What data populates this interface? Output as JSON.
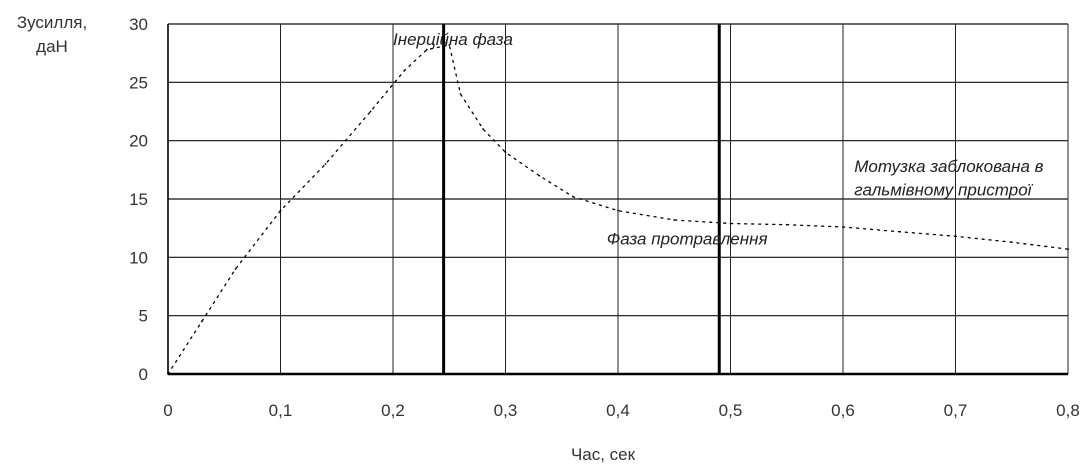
{
  "chart_data": {
    "type": "line",
    "title": "",
    "xlabel": "Час, сек",
    "ylabel_lines": [
      "Зусилля,",
      "даН"
    ],
    "xlim": [
      0,
      0.8
    ],
    "ylim": [
      0,
      30
    ],
    "x_ticks": [
      0,
      0.1,
      0.2,
      0.3,
      0.4,
      0.5,
      0.6,
      0.7,
      0.8
    ],
    "x_tick_labels": [
      "0",
      "0,1",
      "0,2",
      "0,3",
      "0,4",
      "0,5",
      "0,6",
      "0,7",
      "0,8"
    ],
    "y_ticks": [
      0,
      5,
      10,
      15,
      20,
      25,
      30
    ],
    "y_tick_labels": [
      "0",
      "5",
      "10",
      "15",
      "20",
      "25",
      "30"
    ],
    "grid": true,
    "legend": "none",
    "series": [
      {
        "style": "dotted",
        "x": [
          0.0,
          0.03,
          0.06,
          0.1,
          0.14,
          0.18,
          0.21,
          0.23,
          0.25,
          0.26,
          0.28,
          0.3,
          0.33,
          0.36,
          0.4,
          0.45,
          0.5,
          0.55,
          0.6,
          0.65,
          0.7,
          0.75,
          0.8
        ],
        "y": [
          0.0,
          4.5,
          9.0,
          14.0,
          18.0,
          22.5,
          26.0,
          27.8,
          28.2,
          24.0,
          21.0,
          19.0,
          17.0,
          15.2,
          14.0,
          13.2,
          12.9,
          12.8,
          12.6,
          12.2,
          11.8,
          11.3,
          10.7
        ]
      }
    ],
    "phase_dividers_x": [
      0.245,
      0.49
    ],
    "annotations": [
      {
        "text": "Інерційна фаза",
        "x": 0.2,
        "y": 28.2
      },
      {
        "text": "Фаза протравлення",
        "x": 0.39,
        "y": 11.1
      },
      {
        "text": "Мотузка заблокована в",
        "x": 0.61,
        "y": 17.3
      },
      {
        "text": "гальмівному пристрої",
        "x": 0.61,
        "y": 15.3
      }
    ]
  }
}
